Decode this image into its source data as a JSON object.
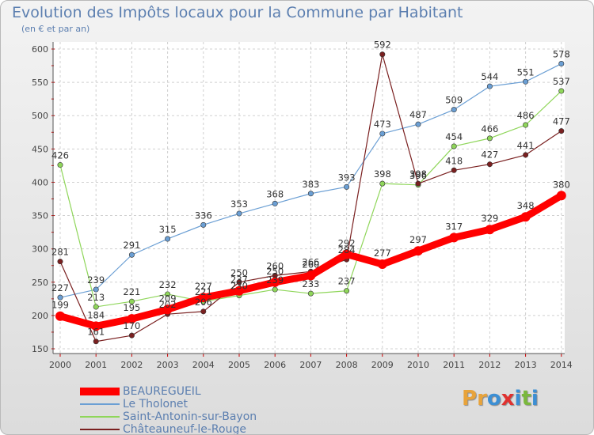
{
  "title": "Evolution des Impôts locaux pour la Commune par Habitant",
  "subtitle": "(en € et par an)",
  "logo": {
    "letters": [
      "P",
      "r",
      "o",
      "x",
      "i",
      "t",
      "i"
    ],
    "colors": [
      "#e8a33a",
      "#e8a33a",
      "#3c8fd4",
      "#e0312f",
      "#3c8fd4",
      "#7ab83c",
      "#3c8fd4"
    ]
  },
  "chart_data": {
    "type": "line",
    "x": [
      "2000",
      "2001",
      "2002",
      "2003",
      "2004",
      "2005",
      "2006",
      "2007",
      "2008",
      "2009",
      "2010",
      "2011",
      "2012",
      "2013",
      "2014"
    ],
    "ylim": [
      150,
      600
    ],
    "yticks": [
      150,
      200,
      250,
      300,
      350,
      400,
      450,
      500,
      550,
      600
    ],
    "grid": true,
    "legend_position": "bottom-left",
    "series": [
      {
        "name": "BEAUREGUEIL",
        "color": "#ff0000",
        "values": [
          199,
          184,
          195,
          209,
          227,
          237,
          250,
          260,
          292,
          277,
          297,
          317,
          329,
          348,
          380
        ],
        "width": 9,
        "labels": [
          "199",
          "184",
          "195",
          "209",
          "227",
          "237",
          "250",
          "260",
          "292",
          "277",
          "297",
          "317",
          "329",
          "348",
          "380"
        ]
      },
      {
        "name": "Le Tholonet",
        "color": "#6b9fd4",
        "values": [
          227,
          239,
          291,
          315,
          336,
          353,
          368,
          383,
          393,
          473,
          487,
          509,
          544,
          551,
          578
        ],
        "width": 1.2,
        "labels": [
          "227",
          "239",
          "291",
          "315",
          "336",
          "353",
          "368",
          "383",
          "393",
          "473",
          "487",
          "509",
          "544",
          "551",
          "578"
        ]
      },
      {
        "name": "Saint-Antonin-sur-Bayon",
        "color": "#8fd65a",
        "values": [
          426,
          213,
          221,
          232,
          221,
          230,
          239,
          233,
          237,
          398,
          396,
          454,
          466,
          486,
          537
        ],
        "width": 1.2,
        "labels": [
          "426",
          "213",
          "221",
          "232",
          "221",
          "230",
          "239",
          "233",
          "237",
          "398",
          "396",
          "454",
          "466",
          "486",
          "537"
        ]
      },
      {
        "name": "Châteauneuf-le-Rouge",
        "color": "#7a2020",
        "values": [
          281,
          161,
          170,
          202,
          206,
          250,
          260,
          266,
          284,
          592,
          398,
          418,
          427,
          441,
          477
        ],
        "width": 1.2,
        "labels": [
          "281",
          "161",
          "170",
          "202",
          "206",
          "250",
          "260",
          "266",
          "284",
          "592",
          "398",
          "418",
          "427",
          "441",
          "477"
        ]
      }
    ]
  }
}
